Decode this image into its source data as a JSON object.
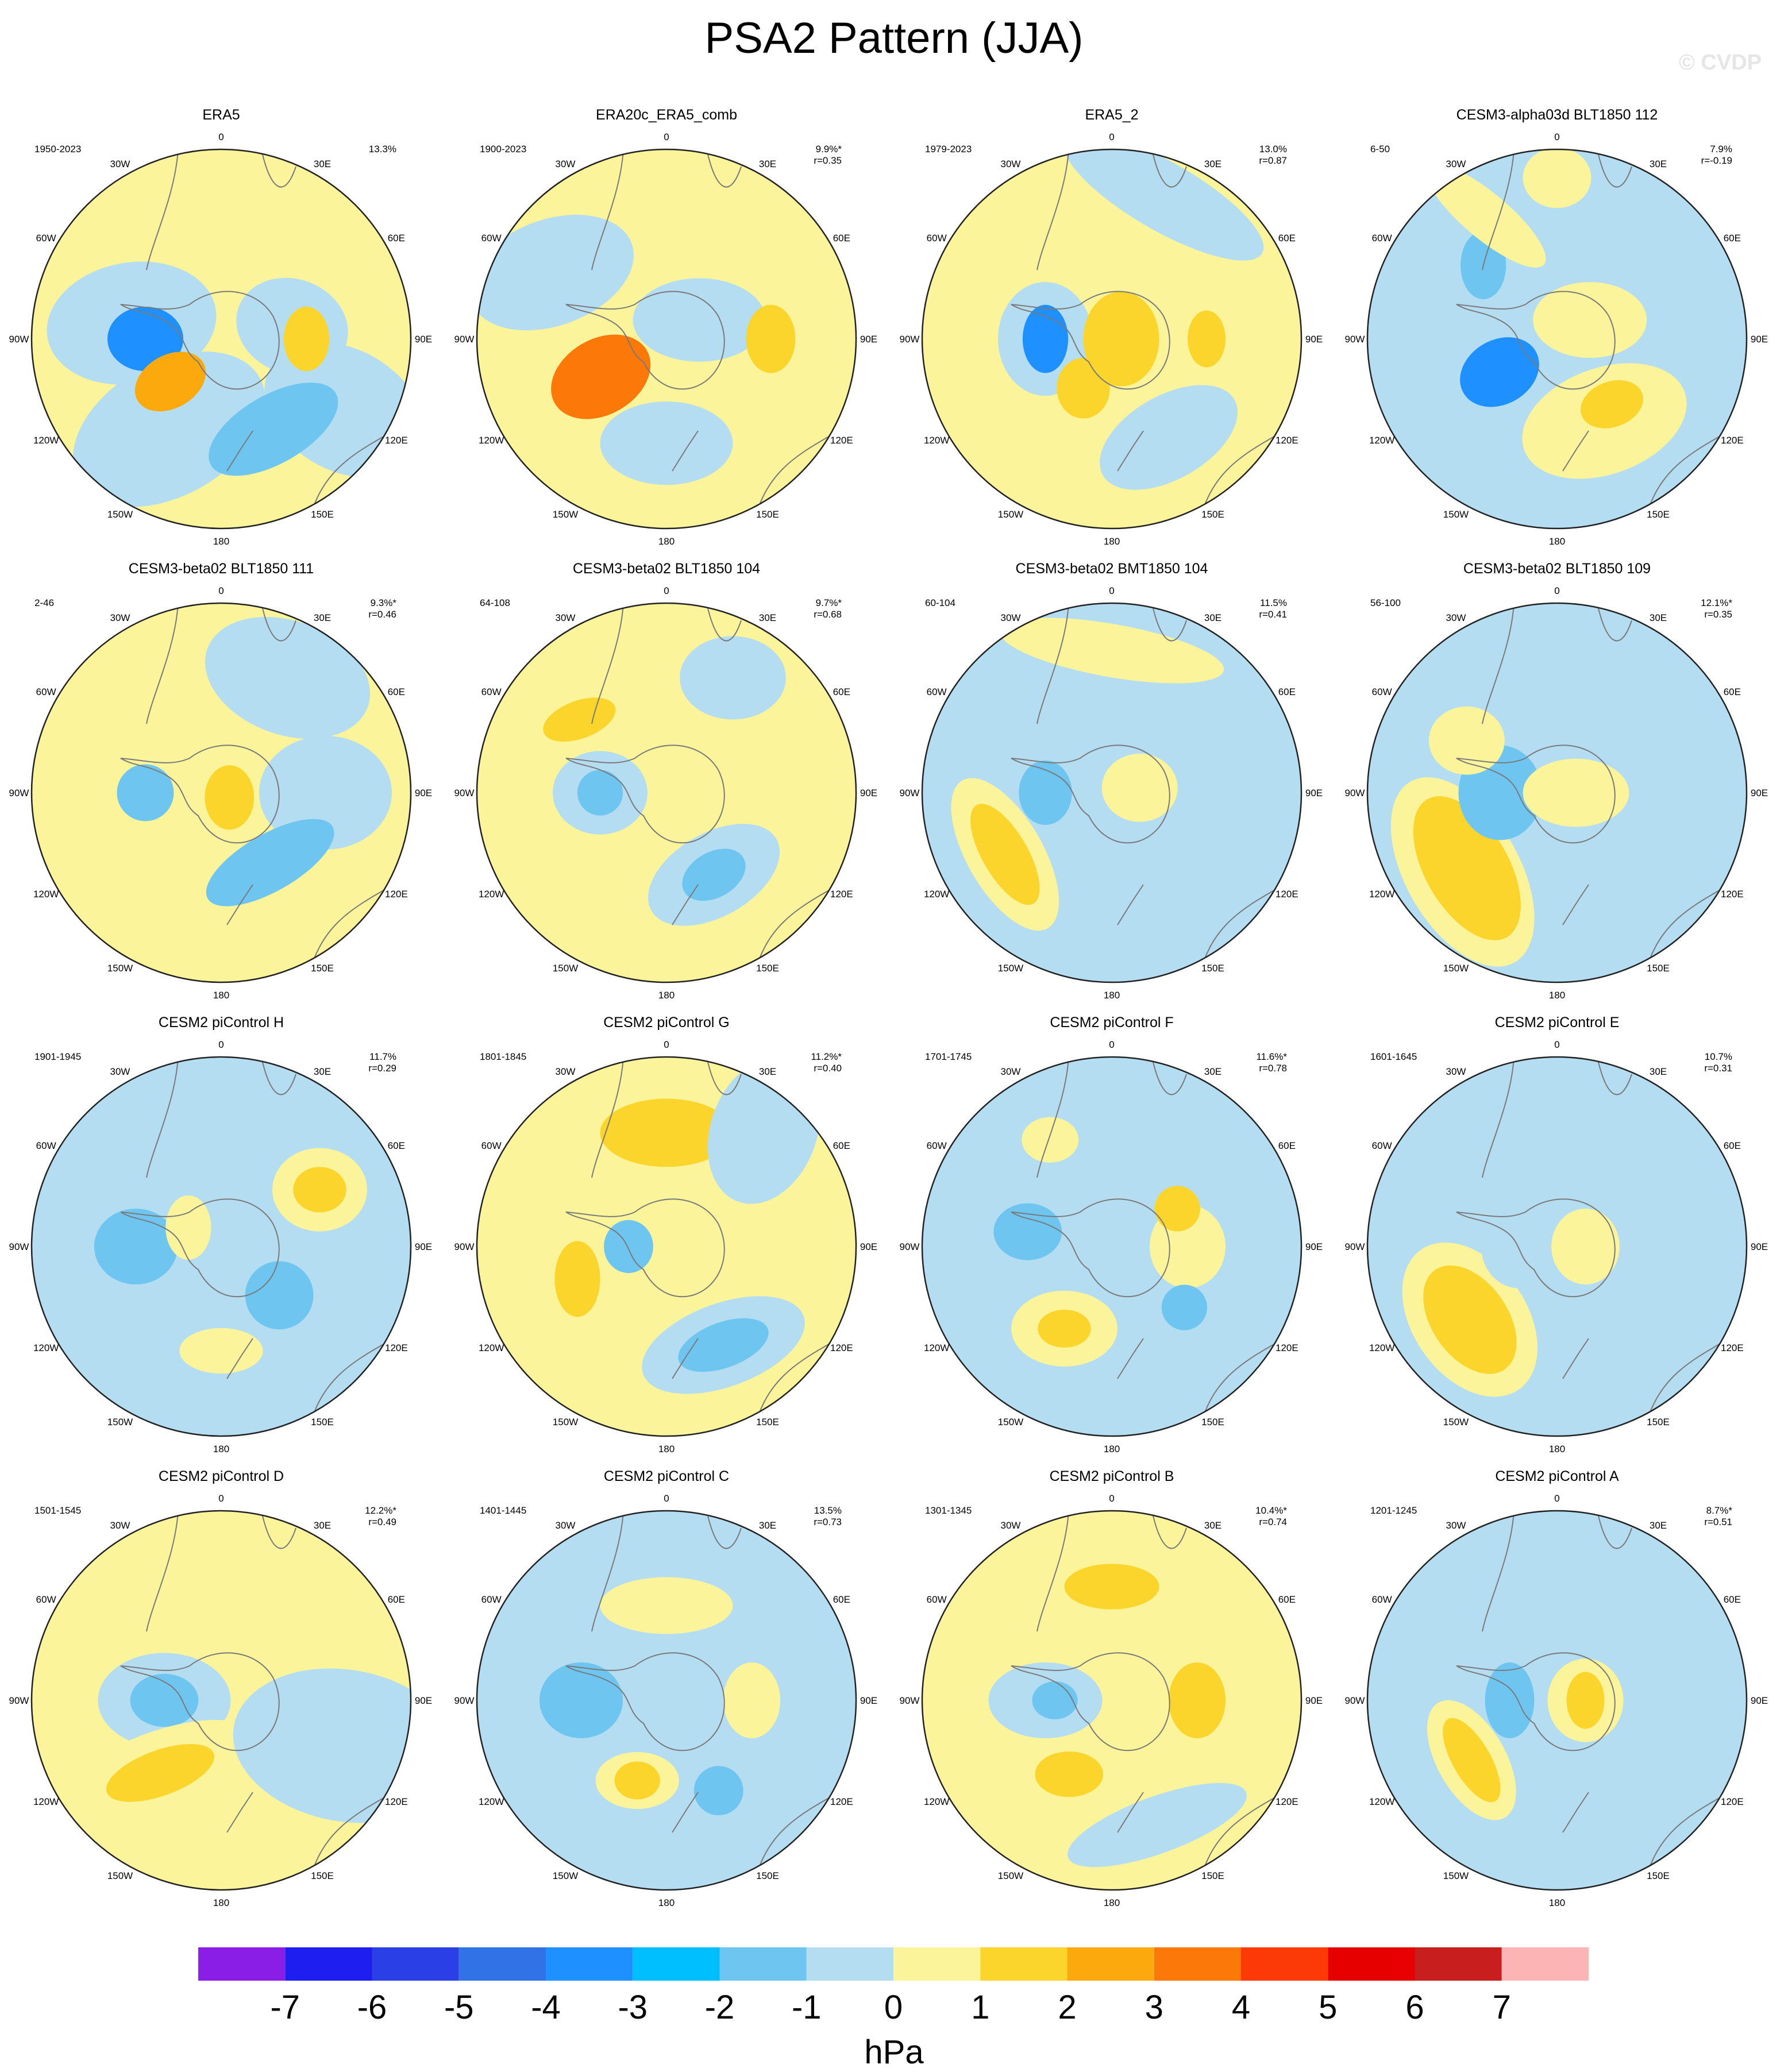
{
  "title": "PSA2 Pattern (JJA)",
  "watermark": "© CVDP",
  "lon_labels": {
    "0": "0",
    "30E": "30E",
    "60E": "60E",
    "90E": "90E",
    "120E": "120E",
    "150E": "150E",
    "180": "180",
    "150W": "150W",
    "120W": "120W",
    "90W": "90W",
    "60W": "60W",
    "30W": "30W"
  },
  "colors": {
    "land_outline": "#7a7a7a",
    "map_border": "#222222"
  },
  "panels": [
    {
      "title": "ERA5",
      "years": "1950-2023",
      "variance": "13.3%",
      "corr": "",
      "background": "#fbf49b",
      "blobs": [
        {
          "angle_deg": 80,
          "radius": 0.38,
          "rx": 0.3,
          "ry": 0.25,
          "rot": 20,
          "level": -1
        },
        {
          "angle_deg": 120,
          "radius": 0.75,
          "rx": 0.45,
          "ry": 0.32,
          "rot": 30,
          "level": -1
        },
        {
          "angle_deg": 210,
          "radius": 0.55,
          "rx": 0.55,
          "ry": 0.35,
          "rot": -30,
          "level": -1
        },
        {
          "angle_deg": 280,
          "radius": 0.48,
          "rx": 0.45,
          "ry": 0.32,
          "rot": -10,
          "level": -1
        },
        {
          "angle_deg": 270,
          "radius": 0.4,
          "rx": 0.2,
          "ry": 0.17,
          "rot": 0,
          "level": -3
        },
        {
          "angle_deg": 230,
          "radius": 0.35,
          "rx": 0.2,
          "ry": 0.14,
          "rot": -30,
          "level": 2
        },
        {
          "angle_deg": 90,
          "radius": 0.45,
          "rx": 0.12,
          "ry": 0.17,
          "rot": 0,
          "level": 1
        },
        {
          "angle_deg": 150,
          "radius": 0.55,
          "rx": 0.38,
          "ry": 0.18,
          "rot": -30,
          "level": -2
        }
      ]
    },
    {
      "title": "ERA20c_ERA5_comb",
      "years": "1900-2023",
      "variance": "9.9%*",
      "corr": "r=0.35",
      "background": "#fbf49b",
      "blobs": [
        {
          "angle_deg": 300,
          "radius": 0.7,
          "rx": 0.45,
          "ry": 0.28,
          "rot": -20,
          "level": -1
        },
        {
          "angle_deg": 180,
          "radius": 0.55,
          "rx": 0.35,
          "ry": 0.22,
          "rot": 0,
          "level": -1
        },
        {
          "angle_deg": 60,
          "radius": 0.2,
          "rx": 0.35,
          "ry": 0.22,
          "rot": 0,
          "level": -1
        },
        {
          "angle_deg": 240,
          "radius": 0.4,
          "rx": 0.28,
          "ry": 0.2,
          "rot": -30,
          "level": 3
        },
        {
          "angle_deg": 90,
          "radius": 0.55,
          "rx": 0.13,
          "ry": 0.18,
          "rot": 0,
          "level": 1
        }
      ]
    },
    {
      "title": "ERA5_2",
      "years": "1979-2023",
      "variance": "13.0%",
      "corr": "r=0.87",
      "background": "#fbf49b",
      "blobs": [
        {
          "angle_deg": 270,
          "radius": 0.35,
          "rx": 0.25,
          "ry": 0.3,
          "rot": 0,
          "level": -1
        },
        {
          "angle_deg": 270,
          "radius": 0.35,
          "rx": 0.12,
          "ry": 0.18,
          "rot": 0,
          "level": -3
        },
        {
          "angle_deg": 150,
          "radius": 0.6,
          "rx": 0.4,
          "ry": 0.22,
          "rot": -30,
          "level": -1
        },
        {
          "angle_deg": 90,
          "radius": 0.05,
          "rx": 0.2,
          "ry": 0.25,
          "rot": 0,
          "level": 1
        },
        {
          "angle_deg": 90,
          "radius": 0.5,
          "rx": 0.1,
          "ry": 0.15,
          "rot": 0,
          "level": 1
        },
        {
          "angle_deg": 210,
          "radius": 0.3,
          "rx": 0.14,
          "ry": 0.16,
          "rot": 0,
          "level": 1
        },
        {
          "angle_deg": 20,
          "radius": 0.8,
          "rx": 0.6,
          "ry": 0.18,
          "rot": 30,
          "level": -1
        }
      ]
    },
    {
      "title": "CESM3-alpha03d BLT1850 112",
      "years": "6-50",
      "variance": "7.9%",
      "corr": "r=-0.19",
      "background": "#b4ddf2",
      "blobs": [
        {
          "angle_deg": 240,
          "radius": 0.35,
          "rx": 0.22,
          "ry": 0.17,
          "rot": -30,
          "level": -3
        },
        {
          "angle_deg": 315,
          "radius": 0.55,
          "rx": 0.12,
          "ry": 0.18,
          "rot": 0,
          "level": -2
        },
        {
          "angle_deg": 330,
          "radius": 0.75,
          "rx": 0.4,
          "ry": 0.12,
          "rot": 40,
          "level": 0
        },
        {
          "angle_deg": 150,
          "radius": 0.5,
          "rx": 0.45,
          "ry": 0.28,
          "rot": -20,
          "level": 0
        },
        {
          "angle_deg": 60,
          "radius": 0.2,
          "rx": 0.3,
          "ry": 0.2,
          "rot": 0,
          "level": 0
        },
        {
          "angle_deg": 140,
          "radius": 0.45,
          "rx": 0.17,
          "ry": 0.12,
          "rot": -20,
          "level": 1
        },
        {
          "angle_deg": 0,
          "radius": 0.85,
          "rx": 0.18,
          "ry": 0.16,
          "rot": 0,
          "level": 0
        }
      ]
    },
    {
      "title": "CESM3-beta02 BLT1850 111",
      "years": "2-46",
      "variance": "9.3%*",
      "corr": "r=0.46",
      "background": "#fbf49b",
      "blobs": [
        {
          "angle_deg": 30,
          "radius": 0.7,
          "rx": 0.45,
          "ry": 0.3,
          "rot": 20,
          "level": -1
        },
        {
          "angle_deg": 90,
          "radius": 0.55,
          "rx": 0.35,
          "ry": 0.3,
          "rot": 0,
          "level": -1
        },
        {
          "angle_deg": 270,
          "radius": 0.4,
          "rx": 0.15,
          "ry": 0.15,
          "rot": 0,
          "level": -2
        },
        {
          "angle_deg": 145,
          "radius": 0.45,
          "rx": 0.38,
          "ry": 0.15,
          "rot": -30,
          "level": -2
        },
        {
          "angle_deg": 120,
          "radius": 0.05,
          "rx": 0.13,
          "ry": 0.17,
          "rot": 0,
          "level": 1
        }
      ]
    },
    {
      "title": "CESM3-beta02 BLT1850 104",
      "years": "64-108",
      "variance": "9.7%*",
      "corr": "r=0.68",
      "background": "#fbf49b",
      "blobs": [
        {
          "angle_deg": 30,
          "radius": 0.7,
          "rx": 0.28,
          "ry": 0.22,
          "rot": 0,
          "level": -1
        },
        {
          "angle_deg": 270,
          "radius": 0.35,
          "rx": 0.25,
          "ry": 0.22,
          "rot": 0,
          "level": -1
        },
        {
          "angle_deg": 270,
          "radius": 0.35,
          "rx": 0.12,
          "ry": 0.12,
          "rot": 0,
          "level": -2
        },
        {
          "angle_deg": 150,
          "radius": 0.5,
          "rx": 0.38,
          "ry": 0.22,
          "rot": -30,
          "level": -1
        },
        {
          "angle_deg": 150,
          "radius": 0.5,
          "rx": 0.18,
          "ry": 0.12,
          "rot": -30,
          "level": -2
        },
        {
          "angle_deg": 310,
          "radius": 0.6,
          "rx": 0.2,
          "ry": 0.1,
          "rot": -20,
          "level": 1
        }
      ]
    },
    {
      "title": "CESM3-beta02 BMT1850 104",
      "years": "60-104",
      "variance": "11.5%",
      "corr": "r=0.41",
      "background": "#b4ddf2",
      "blobs": [
        {
          "angle_deg": 240,
          "radius": 0.65,
          "rx": 0.2,
          "ry": 0.45,
          "rot": -30,
          "level": 0
        },
        {
          "angle_deg": 240,
          "radius": 0.65,
          "rx": 0.12,
          "ry": 0.3,
          "rot": -30,
          "level": 1
        },
        {
          "angle_deg": 270,
          "radius": 0.35,
          "rx": 0.14,
          "ry": 0.17,
          "rot": 0,
          "level": -2
        },
        {
          "angle_deg": 80,
          "radius": 0.15,
          "rx": 0.2,
          "ry": 0.18,
          "rot": 0,
          "level": 0
        },
        {
          "angle_deg": 0,
          "radius": 0.75,
          "rx": 0.6,
          "ry": 0.14,
          "rot": 10,
          "level": 0
        }
      ]
    },
    {
      "title": "CESM3-beta02 BLT1850 109",
      "years": "56-100",
      "variance": "12.1%*",
      "corr": "r=0.35",
      "background": "#b4ddf2",
      "blobs": [
        {
          "angle_deg": 230,
          "radius": 0.65,
          "rx": 0.3,
          "ry": 0.55,
          "rot": -30,
          "level": 0
        },
        {
          "angle_deg": 230,
          "radius": 0.62,
          "rx": 0.22,
          "ry": 0.42,
          "rot": -30,
          "level": 1
        },
        {
          "angle_deg": 270,
          "radius": 0.3,
          "rx": 0.22,
          "ry": 0.25,
          "rot": 0,
          "level": -2
        },
        {
          "angle_deg": 300,
          "radius": 0.55,
          "rx": 0.2,
          "ry": 0.18,
          "rot": 0,
          "level": 0
        },
        {
          "angle_deg": 90,
          "radius": 0.1,
          "rx": 0.28,
          "ry": 0.18,
          "rot": 0,
          "level": 0
        }
      ]
    },
    {
      "title": "CESM2 piControl H",
      "years": "1901-1945",
      "variance": "11.7%",
      "corr": "r=0.29",
      "background": "#b4ddf2",
      "blobs": [
        {
          "angle_deg": 60,
          "radius": 0.6,
          "rx": 0.25,
          "ry": 0.22,
          "rot": 0,
          "level": 0
        },
        {
          "angle_deg": 60,
          "radius": 0.6,
          "rx": 0.14,
          "ry": 0.12,
          "rot": 0,
          "level": 1
        },
        {
          "angle_deg": 270,
          "radius": 0.45,
          "rx": 0.22,
          "ry": 0.2,
          "rot": 0,
          "level": -2
        },
        {
          "angle_deg": 130,
          "radius": 0.4,
          "rx": 0.18,
          "ry": 0.18,
          "rot": 0,
          "level": -2
        },
        {
          "angle_deg": 180,
          "radius": 0.55,
          "rx": 0.22,
          "ry": 0.12,
          "rot": 0,
          "level": 0
        },
        {
          "angle_deg": 300,
          "radius": 0.2,
          "rx": 0.12,
          "ry": 0.17,
          "rot": 0,
          "level": 0
        }
      ]
    },
    {
      "title": "CESM2 piControl G",
      "years": "1801-1845",
      "variance": "11.2%*",
      "corr": "r=0.40",
      "background": "#fbf49b",
      "blobs": [
        {
          "angle_deg": 0,
          "radius": 0.6,
          "rx": 0.35,
          "ry": 0.18,
          "rot": 0,
          "level": 1
        },
        {
          "angle_deg": 250,
          "radius": 0.5,
          "rx": 0.12,
          "ry": 0.2,
          "rot": 0,
          "level": 1
        },
        {
          "angle_deg": 270,
          "radius": 0.2,
          "rx": 0.13,
          "ry": 0.14,
          "rot": 0,
          "level": -2
        },
        {
          "angle_deg": 150,
          "radius": 0.6,
          "rx": 0.45,
          "ry": 0.22,
          "rot": -20,
          "level": -1
        },
        {
          "angle_deg": 150,
          "radius": 0.6,
          "rx": 0.25,
          "ry": 0.12,
          "rot": -20,
          "level": -2
        },
        {
          "angle_deg": 40,
          "radius": 0.8,
          "rx": 0.28,
          "ry": 0.4,
          "rot": 20,
          "level": -1
        }
      ]
    },
    {
      "title": "CESM2 piControl F",
      "years": "1701-1745",
      "variance": "11.6%*",
      "corr": "r=0.78",
      "background": "#b4ddf2",
      "blobs": [
        {
          "angle_deg": 90,
          "radius": 0.4,
          "rx": 0.2,
          "ry": 0.22,
          "rot": 0,
          "level": 0
        },
        {
          "angle_deg": 60,
          "radius": 0.4,
          "rx": 0.12,
          "ry": 0.12,
          "rot": 0,
          "level": 1
        },
        {
          "angle_deg": 210,
          "radius": 0.5,
          "rx": 0.28,
          "ry": 0.2,
          "rot": 0,
          "level": 0
        },
        {
          "angle_deg": 210,
          "radius": 0.5,
          "rx": 0.14,
          "ry": 0.1,
          "rot": 0,
          "level": 1
        },
        {
          "angle_deg": 280,
          "radius": 0.45,
          "rx": 0.18,
          "ry": 0.15,
          "rot": 0,
          "level": -2
        },
        {
          "angle_deg": 330,
          "radius": 0.65,
          "rx": 0.15,
          "ry": 0.12,
          "rot": 0,
          "level": 0
        },
        {
          "angle_deg": 130,
          "radius": 0.5,
          "rx": 0.12,
          "ry": 0.12,
          "rot": 0,
          "level": -2
        }
      ]
    },
    {
      "title": "CESM2 piControl E",
      "years": "1601-1645",
      "variance": "10.7%",
      "corr": "r=0.31",
      "background": "#b4ddf2",
      "blobs": [
        {
          "angle_deg": 230,
          "radius": 0.6,
          "rx": 0.3,
          "ry": 0.45,
          "rot": -35,
          "level": 0
        },
        {
          "angle_deg": 230,
          "radius": 0.6,
          "rx": 0.2,
          "ry": 0.32,
          "rot": -35,
          "level": 1
        },
        {
          "angle_deg": 270,
          "radius": 0.2,
          "rx": 0.2,
          "ry": 0.22,
          "rot": 0,
          "level": -1
        },
        {
          "angle_deg": 90,
          "radius": 0.15,
          "rx": 0.18,
          "ry": 0.2,
          "rot": 0,
          "level": 0
        },
        {
          "angle_deg": 20,
          "radius": 0.7,
          "rx": 0.3,
          "ry": 0.14,
          "rot": 20,
          "level": -1
        }
      ]
    },
    {
      "title": "CESM2 piControl D",
      "years": "1501-1545",
      "variance": "12.2%*",
      "corr": "r=0.49",
      "background": "#fbf49b",
      "blobs": [
        {
          "angle_deg": 270,
          "radius": 0.3,
          "rx": 0.35,
          "ry": 0.25,
          "rot": 0,
          "level": -1
        },
        {
          "angle_deg": 270,
          "radius": 0.3,
          "rx": 0.18,
          "ry": 0.14,
          "rot": 0,
          "level": -2
        },
        {
          "angle_deg": 220,
          "radius": 0.5,
          "rx": 0.55,
          "ry": 0.22,
          "rot": -20,
          "level": 0
        },
        {
          "angle_deg": 220,
          "radius": 0.5,
          "rx": 0.3,
          "ry": 0.12,
          "rot": -20,
          "level": 1
        },
        {
          "angle_deg": 110,
          "radius": 0.7,
          "rx": 0.6,
          "ry": 0.4,
          "rot": 10,
          "level": -1
        }
      ]
    },
    {
      "title": "CESM2 piControl C",
      "years": "1401-1445",
      "variance": "13.5%",
      "corr": "r=0.73",
      "background": "#b4ddf2",
      "blobs": [
        {
          "angle_deg": 270,
          "radius": 0.45,
          "rx": 0.22,
          "ry": 0.2,
          "rot": 0,
          "level": -2
        },
        {
          "angle_deg": 200,
          "radius": 0.45,
          "rx": 0.22,
          "ry": 0.15,
          "rot": 0,
          "level": 0
        },
        {
          "angle_deg": 200,
          "radius": 0.45,
          "rx": 0.12,
          "ry": 0.1,
          "rot": 0,
          "level": 1
        },
        {
          "angle_deg": 90,
          "radius": 0.45,
          "rx": 0.15,
          "ry": 0.2,
          "rot": 0,
          "level": 0
        },
        {
          "angle_deg": 0,
          "radius": 0.5,
          "rx": 0.35,
          "ry": 0.15,
          "rot": 0,
          "level": 0
        },
        {
          "angle_deg": 150,
          "radius": 0.55,
          "rx": 0.13,
          "ry": 0.13,
          "rot": 0,
          "level": -2
        }
      ]
    },
    {
      "title": "CESM2 piControl B",
      "years": "1301-1345",
      "variance": "10.4%*",
      "corr": "r=0.74",
      "background": "#fbf49b",
      "blobs": [
        {
          "angle_deg": 270,
          "radius": 0.35,
          "rx": 0.3,
          "ry": 0.2,
          "rot": 0,
          "level": -1
        },
        {
          "angle_deg": 270,
          "radius": 0.3,
          "rx": 0.12,
          "ry": 0.1,
          "rot": 0,
          "level": -2
        },
        {
          "angle_deg": 90,
          "radius": 0.45,
          "rx": 0.15,
          "ry": 0.2,
          "rot": 0,
          "level": 1
        },
        {
          "angle_deg": 210,
          "radius": 0.45,
          "rx": 0.18,
          "ry": 0.12,
          "rot": 0,
          "level": 1
        },
        {
          "angle_deg": 0,
          "radius": 0.6,
          "rx": 0.25,
          "ry": 0.12,
          "rot": 0,
          "level": 1
        },
        {
          "angle_deg": 160,
          "radius": 0.7,
          "rx": 0.5,
          "ry": 0.15,
          "rot": -20,
          "level": -1
        }
      ]
    },
    {
      "title": "CESM2 piControl A",
      "years": "1201-1245",
      "variance": "8.7%*",
      "corr": "r=0.51",
      "background": "#b4ddf2",
      "blobs": [
        {
          "angle_deg": 235,
          "radius": 0.55,
          "rx": 0.18,
          "ry": 0.35,
          "rot": -30,
          "level": 0
        },
        {
          "angle_deg": 235,
          "radius": 0.55,
          "rx": 0.1,
          "ry": 0.25,
          "rot": -30,
          "level": 1
        },
        {
          "angle_deg": 270,
          "radius": 0.25,
          "rx": 0.13,
          "ry": 0.2,
          "rot": 0,
          "level": -2
        },
        {
          "angle_deg": 90,
          "radius": 0.15,
          "rx": 0.2,
          "ry": 0.22,
          "rot": 0,
          "level": 0
        },
        {
          "angle_deg": 90,
          "radius": 0.15,
          "rx": 0.1,
          "ry": 0.15,
          "rot": 0,
          "level": 1
        },
        {
          "angle_deg": 45,
          "radius": 0.65,
          "rx": 0.12,
          "ry": 0.12,
          "rot": 0,
          "level": -1
        }
      ]
    }
  ],
  "colorbar": {
    "unit": "hPa",
    "tick_labels": [
      "-7",
      "-6",
      "-5",
      "-4",
      "-3",
      "-2",
      "-1",
      "0",
      "1",
      "2",
      "3",
      "4",
      "5",
      "6",
      "7"
    ],
    "colors": [
      "#8a1ee6",
      "#1e1ef0",
      "#2a40e6",
      "#3172e6",
      "#1e90ff",
      "#00bfff",
      "#6ec6f0",
      "#b4ddf2",
      "#fbf49b",
      "#fcd52c",
      "#fca90e",
      "#fc7808",
      "#fc3a08",
      "#e60000",
      "#c81e1e",
      "#fcb4b4"
    ]
  },
  "level_colors": {
    "-3": "#1e90ff",
    "-2": "#6ec6f0",
    "-1": "#b4ddf2",
    "0": "#fbf49b",
    "1": "#fcd52c",
    "2": "#fca90e",
    "3": "#fc7808"
  }
}
